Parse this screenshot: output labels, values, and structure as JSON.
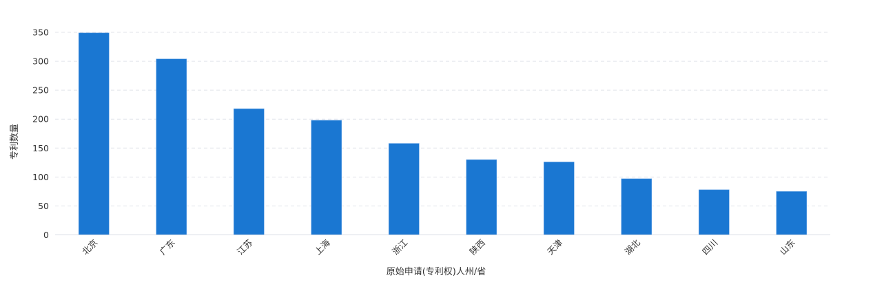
{
  "chart_data": {
    "type": "bar",
    "xlabel": "原始申请(专利权)人州/省",
    "ylabel": "专利数量",
    "categories": [
      "北京",
      "广东",
      "江苏",
      "上海",
      "浙江",
      "陕西",
      "天津",
      "湖北",
      "四川",
      "山东"
    ],
    "values": [
      349,
      304,
      218,
      198,
      158,
      130,
      126,
      97,
      78,
      75
    ],
    "ylim": [
      0,
      350
    ],
    "yticks": [
      0,
      50,
      100,
      150,
      200,
      250,
      300,
      350
    ],
    "grid": true,
    "bar_color": "#1a77d2"
  }
}
